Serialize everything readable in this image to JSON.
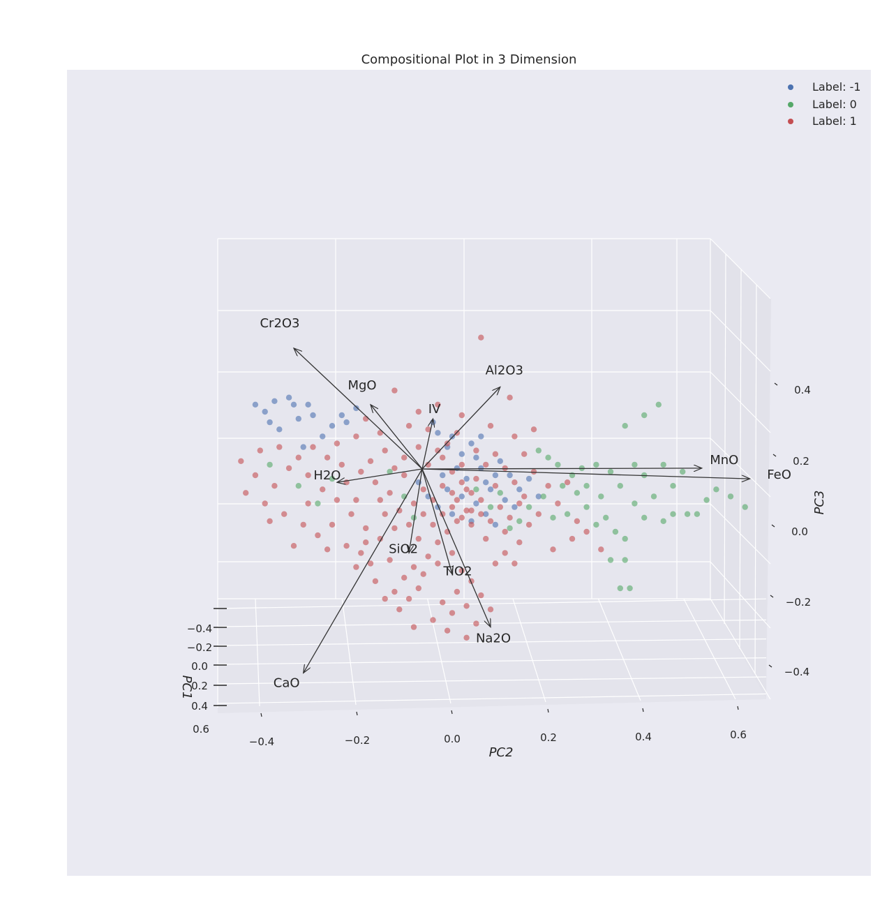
{
  "colors": {
    "background": "#eaeaf2",
    "grid": "#ffffff",
    "label_neg1": "#4c72b0",
    "label_0": "#55a868",
    "label_1": "#c44e52",
    "arrow": "#333333",
    "text": "#262626"
  },
  "chart_data": {
    "type": "scatter",
    "projection": "3d",
    "title": "Compositional Plot in 3 Dimension",
    "xlabel": "PC2",
    "ylabel": "PC1",
    "zlabel": "PC3",
    "grid": true,
    "legend_position": "top-right",
    "axes": {
      "pc1": {
        "ticks": [
          -0.4,
          -0.2,
          0.0,
          0.2,
          0.4,
          0.6
        ],
        "tick_labels": [
          "−0.4",
          "−0.2",
          "0.0",
          "0.2",
          "0.4",
          "0.6"
        ],
        "range": [
          -0.5,
          0.6
        ]
      },
      "pc2": {
        "ticks": [
          -0.4,
          -0.2,
          0.0,
          0.2,
          0.4,
          0.6
        ],
        "tick_labels": [
          "−0.4",
          "−0.2",
          "0.0",
          "0.2",
          "0.4",
          "0.6"
        ],
        "range": [
          -0.48,
          0.66
        ]
      },
      "pc3": {
        "ticks": [
          -0.4,
          -0.2,
          0.0,
          0.2,
          0.4
        ],
        "tick_labels": [
          "−0.4",
          "−0.2",
          "0.0",
          "0.2",
          "0.4"
        ],
        "range": [
          -0.5,
          0.5
        ]
      }
    },
    "series": [
      {
        "name": "Label: -1",
        "color_key": "label_neg1",
        "points": [
          [
            -0.41,
            0.36
          ],
          [
            -0.39,
            0.34
          ],
          [
            -0.38,
            0.31
          ],
          [
            -0.37,
            0.37
          ],
          [
            -0.34,
            0.38
          ],
          [
            -0.33,
            0.36
          ],
          [
            -0.32,
            0.32
          ],
          [
            -0.3,
            0.36
          ],
          [
            -0.27,
            0.27
          ],
          [
            -0.25,
            0.3
          ],
          [
            -0.23,
            0.33
          ],
          [
            -0.22,
            0.31
          ],
          [
            -0.2,
            0.35
          ],
          [
            -0.29,
            0.33
          ],
          [
            -0.36,
            0.29
          ],
          [
            -0.31,
            0.24
          ],
          [
            -0.04,
            0.31
          ],
          [
            -0.03,
            0.28
          ],
          [
            -0.01,
            0.24
          ],
          [
            0.0,
            0.27
          ],
          [
            0.02,
            0.22
          ],
          [
            0.04,
            0.25
          ],
          [
            0.05,
            0.21
          ],
          [
            0.06,
            0.18
          ],
          [
            0.07,
            0.14
          ],
          [
            0.08,
            0.12
          ],
          [
            0.03,
            0.15
          ],
          [
            0.01,
            0.18
          ],
          [
            -0.02,
            0.16
          ],
          [
            0.09,
            0.16
          ],
          [
            0.1,
            0.2
          ],
          [
            0.12,
            0.16
          ],
          [
            0.14,
            0.12
          ],
          [
            0.16,
            0.15
          ],
          [
            0.18,
            0.1
          ],
          [
            0.13,
            0.07
          ],
          [
            0.11,
            0.09
          ],
          [
            0.05,
            0.08
          ],
          [
            0.02,
            0.1
          ],
          [
            -0.01,
            0.12
          ],
          [
            -0.03,
            0.07
          ],
          [
            0.0,
            0.05
          ],
          [
            0.04,
            0.03
          ],
          [
            0.07,
            0.05
          ],
          [
            0.09,
            0.02
          ],
          [
            -0.05,
            0.1
          ],
          [
            -0.07,
            0.14
          ],
          [
            0.06,
            0.27
          ]
        ]
      },
      {
        "name": "Label: 0",
        "color_key": "label_0",
        "points": [
          [
            0.18,
            0.23
          ],
          [
            0.2,
            0.21
          ],
          [
            0.22,
            0.19
          ],
          [
            0.25,
            0.16
          ],
          [
            0.27,
            0.18
          ],
          [
            0.3,
            0.19
          ],
          [
            0.33,
            0.17
          ],
          [
            0.35,
            0.13
          ],
          [
            0.38,
            0.19
          ],
          [
            0.4,
            0.16
          ],
          [
            0.42,
            0.1
          ],
          [
            0.44,
            0.19
          ],
          [
            0.46,
            0.13
          ],
          [
            0.48,
            0.17
          ],
          [
            0.38,
            0.08
          ],
          [
            0.32,
            0.04
          ],
          [
            0.34,
            0.0
          ],
          [
            0.36,
            -0.02
          ],
          [
            0.33,
            -0.08
          ],
          [
            0.36,
            -0.08
          ],
          [
            0.35,
            -0.16
          ],
          [
            0.37,
            -0.16
          ],
          [
            0.3,
            0.02
          ],
          [
            0.28,
            0.07
          ],
          [
            0.24,
            0.05
          ],
          [
            0.21,
            0.04
          ],
          [
            0.26,
            0.11
          ],
          [
            0.23,
            0.13
          ],
          [
            0.31,
            0.1
          ],
          [
            0.4,
            0.04
          ],
          [
            0.44,
            0.03
          ],
          [
            0.46,
            0.05
          ],
          [
            0.49,
            0.05
          ],
          [
            0.51,
            0.05
          ],
          [
            0.53,
            0.09
          ],
          [
            0.55,
            0.12
          ],
          [
            0.58,
            0.1
          ],
          [
            0.61,
            0.07
          ],
          [
            0.28,
            0.13
          ],
          [
            0.16,
            0.07
          ],
          [
            0.14,
            0.03
          ],
          [
            0.12,
            0.01
          ],
          [
            0.19,
            0.1
          ],
          [
            0.4,
            0.33
          ],
          [
            0.43,
            0.36
          ],
          [
            0.36,
            0.3
          ],
          [
            -0.38,
            0.19
          ],
          [
            -0.32,
            0.13
          ],
          [
            -0.28,
            0.08
          ],
          [
            -0.25,
            0.15
          ],
          [
            -0.1,
            0.1
          ],
          [
            -0.08,
            0.04
          ],
          [
            -0.13,
            0.17
          ],
          [
            0.05,
            0.12
          ],
          [
            0.08,
            0.07
          ],
          [
            0.1,
            0.11
          ]
        ]
      },
      {
        "name": "Label: 1",
        "color_key": "label_1",
        "points": [
          [
            0.06,
            0.55
          ],
          [
            -0.12,
            0.4
          ],
          [
            -0.07,
            0.34
          ],
          [
            -0.03,
            0.36
          ],
          [
            0.12,
            0.38
          ],
          [
            0.17,
            0.29
          ],
          [
            -0.18,
            0.32
          ],
          [
            -0.15,
            0.28
          ],
          [
            -0.2,
            0.27
          ],
          [
            -0.24,
            0.25
          ],
          [
            -0.09,
            0.3
          ],
          [
            -0.05,
            0.29
          ],
          [
            0.02,
            0.33
          ],
          [
            0.08,
            0.3
          ],
          [
            0.13,
            0.27
          ],
          [
            0.15,
            0.22
          ],
          [
            -0.4,
            0.23
          ],
          [
            -0.44,
            0.2
          ],
          [
            -0.41,
            0.16
          ],
          [
            -0.37,
            0.13
          ],
          [
            -0.43,
            0.11
          ],
          [
            -0.39,
            0.08
          ],
          [
            -0.35,
            0.05
          ],
          [
            -0.31,
            0.02
          ],
          [
            -0.34,
            0.18
          ],
          [
            -0.3,
            0.16
          ],
          [
            -0.27,
            0.12
          ],
          [
            -0.24,
            0.09
          ],
          [
            -0.21,
            0.05
          ],
          [
            -0.18,
            0.01
          ],
          [
            -0.15,
            -0.02
          ],
          [
            -0.28,
            -0.01
          ],
          [
            -0.25,
            0.02
          ],
          [
            -0.22,
            -0.04
          ],
          [
            -0.19,
            -0.06
          ],
          [
            -0.16,
            0.14
          ],
          [
            -0.13,
            0.11
          ],
          [
            -0.11,
            0.06
          ],
          [
            -0.09,
            0.02
          ],
          [
            -0.07,
            -0.02
          ],
          [
            -0.05,
            0.19
          ],
          [
            -0.02,
            0.21
          ],
          [
            0.0,
            0.17
          ],
          [
            0.02,
            0.14
          ],
          [
            0.04,
            0.11
          ],
          [
            0.06,
            0.09
          ],
          [
            0.03,
            0.06
          ],
          [
            0.01,
            0.03
          ],
          [
            -0.01,
            0.0
          ],
          [
            -0.03,
            -0.03
          ],
          [
            -0.05,
            -0.07
          ],
          [
            -0.08,
            -0.1
          ],
          [
            -0.1,
            -0.13
          ],
          [
            -0.07,
            -0.16
          ],
          [
            -0.09,
            -0.19
          ],
          [
            -0.12,
            -0.17
          ],
          [
            -0.06,
            -0.12
          ],
          [
            -0.03,
            -0.09
          ],
          [
            0.0,
            -0.06
          ],
          [
            0.02,
            -0.11
          ],
          [
            0.04,
            -0.14
          ],
          [
            0.01,
            -0.17
          ],
          [
            -0.02,
            -0.2
          ],
          [
            0.0,
            -0.23
          ],
          [
            0.03,
            -0.21
          ],
          [
            0.06,
            -0.18
          ],
          [
            0.08,
            -0.22
          ],
          [
            -0.11,
            -0.22
          ],
          [
            -0.14,
            -0.19
          ],
          [
            -0.16,
            -0.14
          ],
          [
            -0.13,
            -0.08
          ],
          [
            -0.17,
            -0.09
          ],
          [
            0.01,
            0.09
          ],
          [
            0.03,
            0.12
          ],
          [
            0.05,
            0.15
          ],
          [
            -0.02,
            0.13
          ],
          [
            -0.04,
            0.09
          ],
          [
            -0.06,
            0.05
          ],
          [
            0.0,
            0.07
          ],
          [
            0.02,
            0.04
          ],
          [
            0.04,
            0.02
          ],
          [
            0.06,
            0.05
          ],
          [
            0.08,
            0.03
          ],
          [
            0.1,
            0.07
          ],
          [
            0.12,
            0.04
          ],
          [
            0.14,
            0.08
          ],
          [
            0.16,
            0.02
          ],
          [
            0.18,
            0.05
          ],
          [
            0.2,
            0.13
          ],
          [
            0.22,
            0.08
          ],
          [
            0.24,
            0.14
          ],
          [
            0.26,
            0.03
          ],
          [
            0.14,
            -0.03
          ],
          [
            0.11,
            -0.06
          ],
          [
            0.09,
            -0.09
          ],
          [
            0.07,
            -0.02
          ],
          [
            -0.01,
            0.25
          ],
          [
            0.01,
            0.28
          ],
          [
            -0.03,
            0.23
          ],
          [
            -0.07,
            0.24
          ],
          [
            -0.1,
            0.21
          ],
          [
            -0.12,
            0.18
          ],
          [
            -0.14,
            0.23
          ],
          [
            0.05,
            0.23
          ],
          [
            0.07,
            0.19
          ],
          [
            0.09,
            0.22
          ],
          [
            0.11,
            0.18
          ],
          [
            0.13,
            0.14
          ],
          [
            0.15,
            0.1
          ],
          [
            0.17,
            0.17
          ],
          [
            -0.17,
            0.2
          ],
          [
            -0.19,
            0.17
          ],
          [
            -0.22,
            0.14
          ],
          [
            -0.2,
            0.09
          ],
          [
            -0.23,
            0.19
          ],
          [
            -0.26,
            0.21
          ],
          [
            -0.29,
            0.24
          ],
          [
            -0.32,
            0.21
          ],
          [
            -0.36,
            0.24
          ],
          [
            -0.38,
            0.03
          ],
          [
            -0.33,
            -0.04
          ],
          [
            -0.3,
            0.08
          ],
          [
            -0.26,
            -0.05
          ],
          [
            -0.2,
            -0.1
          ],
          [
            -0.18,
            -0.03
          ],
          [
            0.21,
            -0.05
          ],
          [
            0.25,
            -0.02
          ],
          [
            0.28,
            0.0
          ],
          [
            0.31,
            -0.05
          ],
          [
            -0.04,
            0.02
          ],
          [
            -0.02,
            0.05
          ],
          [
            0.0,
            0.11
          ],
          [
            0.02,
            0.19
          ],
          [
            0.04,
            0.06
          ],
          [
            -0.08,
            0.08
          ],
          [
            -0.06,
            0.12
          ],
          [
            -0.1,
            0.16
          ],
          [
            -0.12,
            0.01
          ],
          [
            -0.14,
            0.05
          ],
          [
            -0.15,
            0.09
          ],
          [
            0.09,
            0.13
          ],
          [
            0.11,
            0.0
          ],
          [
            0.13,
            -0.09
          ],
          [
            0.05,
            -0.26
          ],
          [
            -0.04,
            -0.25
          ],
          [
            -0.08,
            -0.27
          ],
          [
            0.03,
            -0.3
          ],
          [
            -0.01,
            -0.28
          ]
        ]
      }
    ],
    "loading_vectors": [
      {
        "label": "Cr2O3",
        "pc2": -0.33,
        "pc3": 0.52
      },
      {
        "label": "Al2O3",
        "pc2": 0.1,
        "pc3": 0.41
      },
      {
        "label": "MgO",
        "pc2": -0.17,
        "pc3": 0.36
      },
      {
        "label": "IV",
        "pc2": -0.04,
        "pc3": 0.32
      },
      {
        "label": "MnO",
        "pc2": 0.52,
        "pc3": 0.18
      },
      {
        "label": "FeO",
        "pc2": 0.62,
        "pc3": 0.15
      },
      {
        "label": "H2O",
        "pc2": -0.24,
        "pc3": 0.14
      },
      {
        "label": "SiO2",
        "pc2": -0.09,
        "pc3": -0.06
      },
      {
        "label": "TiO2",
        "pc2": 0.0,
        "pc3": -0.12
      },
      {
        "label": "Na2O",
        "pc2": 0.08,
        "pc3": -0.27
      },
      {
        "label": "CaO",
        "pc2": -0.31,
        "pc3": -0.4
      }
    ],
    "loading_label_texts": {
      "Cr2O3": "Cr2O3",
      "Al2O3": "Al2O3",
      "MgO": "MgO",
      "IV": "IV",
      "MnO": "MnO",
      "FeO": "FeO",
      "H2O": "H2O",
      "SiO2": "SiO2",
      "TiO2": "TiO2",
      "Na2O": "Na2O",
      "CaO": "CaO"
    }
  }
}
